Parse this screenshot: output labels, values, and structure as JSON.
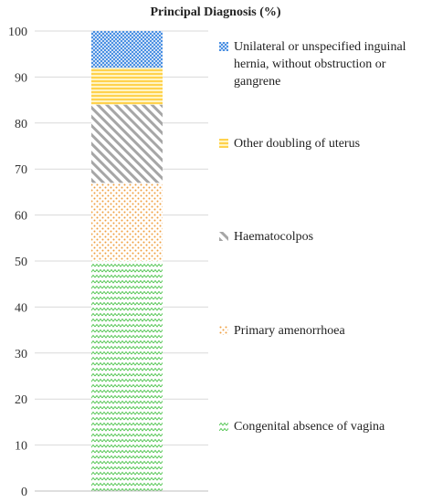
{
  "chart_data": {
    "type": "bar",
    "stacked": true,
    "title": "Principal Diagnosis (%)",
    "xlabel": "",
    "ylabel": "",
    "ylim": [
      0,
      100
    ],
    "yticks": [
      0,
      10,
      20,
      30,
      40,
      50,
      60,
      70,
      80,
      90,
      100
    ],
    "grid": true,
    "legend_position": "right",
    "series": [
      {
        "name": "Congenital absence of vagina",
        "value": 50,
        "color": "#5fcf5f",
        "pattern": "zigzag"
      },
      {
        "name": "Primary amenorrhoea",
        "value": 17,
        "color": "#f0a040",
        "pattern": "dots"
      },
      {
        "name": "Haematocolpos",
        "value": 17,
        "color": "#a6a6a6",
        "pattern": "diagonal-stripes"
      },
      {
        "name": "Other doubling of uterus",
        "value": 8,
        "color": "#ffd24d",
        "pattern": "horizontal-stripes"
      },
      {
        "name": "Unilateral or unspecified inguinal hernia, without obstruction or gangrene",
        "value": 8,
        "color": "#4a90e2",
        "pattern": "checker"
      }
    ]
  }
}
